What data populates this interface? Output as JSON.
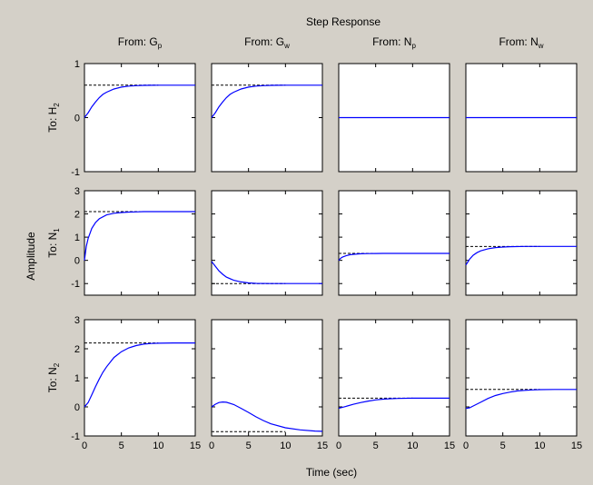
{
  "figure": {
    "title": "Step Response",
    "xlabel": "Time (sec)",
    "ylabel": "Amplitude",
    "background": "#d4d0c8",
    "axes_background": "#ffffff",
    "response_color": "#0000ff",
    "steady_state_color": "#000000"
  },
  "chart_data": {
    "type": "line",
    "title": "Step Response",
    "xlabel": "Time (sec)",
    "ylabel": "Amplitude",
    "xlim": [
      0,
      15
    ],
    "xticks": [
      0,
      5,
      10,
      15
    ],
    "grid": false,
    "columns": [
      {
        "label": "From: G",
        "sub": "p"
      },
      {
        "label": "From: G",
        "sub": "w"
      },
      {
        "label": "From: N",
        "sub": "p"
      },
      {
        "label": "From: N",
        "sub": "w"
      }
    ],
    "rows": [
      {
        "label": "To: H",
        "sub": "2",
        "ylim": [
          -1,
          1
        ],
        "yticks": [
          -1,
          0,
          1
        ]
      },
      {
        "label": "To: N",
        "sub": "1",
        "ylim": [
          -1.5,
          3
        ],
        "yticks": [
          -1,
          0,
          1,
          2,
          3
        ]
      },
      {
        "label": "To: N",
        "sub": "2",
        "ylim": [
          -1,
          3
        ],
        "yticks": [
          -1,
          0,
          1,
          2,
          3
        ]
      }
    ],
    "series": [
      {
        "row": 0,
        "col": 0,
        "steady_state": 0.6,
        "x": [
          0,
          0.5,
          1,
          1.5,
          2,
          2.5,
          3,
          4,
          5,
          6,
          7,
          8,
          9,
          10,
          12,
          15
        ],
        "y": [
          0,
          0.09,
          0.2,
          0.29,
          0.37,
          0.43,
          0.47,
          0.53,
          0.565,
          0.583,
          0.592,
          0.596,
          0.598,
          0.6,
          0.6,
          0.6
        ]
      },
      {
        "row": 0,
        "col": 1,
        "steady_state": 0.6,
        "x": [
          0,
          0.5,
          1,
          1.5,
          2,
          2.5,
          3,
          4,
          5,
          6,
          7,
          8,
          9,
          10,
          12,
          15
        ],
        "y": [
          0,
          0.09,
          0.2,
          0.29,
          0.37,
          0.43,
          0.47,
          0.53,
          0.565,
          0.583,
          0.592,
          0.596,
          0.598,
          0.6,
          0.6,
          0.6
        ]
      },
      {
        "row": 0,
        "col": 2,
        "steady_state": null,
        "x": [
          0,
          15
        ],
        "y": [
          0,
          0
        ]
      },
      {
        "row": 0,
        "col": 3,
        "steady_state": null,
        "x": [
          0,
          15
        ],
        "y": [
          0,
          0
        ]
      },
      {
        "row": 1,
        "col": 0,
        "steady_state": 2.1,
        "x": [
          0,
          0.25,
          0.5,
          1,
          1.5,
          2,
          3,
          4,
          5,
          6,
          7,
          8,
          10,
          15
        ],
        "y": [
          0,
          0.6,
          0.95,
          1.38,
          1.63,
          1.79,
          1.96,
          2.03,
          2.06,
          2.08,
          2.09,
          2.1,
          2.1,
          2.1
        ]
      },
      {
        "row": 1,
        "col": 1,
        "steady_state": -1.0,
        "x": [
          0,
          0.5,
          1,
          1.5,
          2,
          3,
          4,
          5,
          6,
          8,
          10,
          15
        ],
        "y": [
          -0.05,
          -0.25,
          -0.45,
          -0.6,
          -0.72,
          -0.86,
          -0.93,
          -0.97,
          -0.99,
          -1.0,
          -1.0,
          -1.0
        ]
      },
      {
        "row": 1,
        "col": 2,
        "steady_state": 0.3,
        "x": [
          0,
          0.25,
          0.5,
          1,
          1.5,
          2,
          3,
          4,
          5,
          6,
          8,
          15
        ],
        "y": [
          0,
          0.09,
          0.14,
          0.2,
          0.24,
          0.26,
          0.285,
          0.293,
          0.297,
          0.3,
          0.3,
          0.3
        ]
      },
      {
        "row": 1,
        "col": 3,
        "steady_state": 0.6,
        "x": [
          0,
          0.5,
          1,
          1.5,
          2,
          3,
          4,
          5,
          6,
          8,
          10,
          15
        ],
        "y": [
          -0.2,
          0.05,
          0.22,
          0.33,
          0.41,
          0.5,
          0.55,
          0.575,
          0.59,
          0.6,
          0.6,
          0.6
        ]
      },
      {
        "row": 2,
        "col": 0,
        "steady_state": 2.2,
        "x": [
          0,
          0.5,
          1,
          1.5,
          2,
          2.5,
          3,
          4,
          5,
          6,
          7,
          8,
          9,
          10,
          12,
          15
        ],
        "y": [
          0,
          0.15,
          0.42,
          0.7,
          0.96,
          1.19,
          1.38,
          1.7,
          1.9,
          2.03,
          2.11,
          2.16,
          2.18,
          2.19,
          2.2,
          2.2
        ]
      },
      {
        "row": 2,
        "col": 1,
        "steady_state": -0.85,
        "x": [
          0,
          0.5,
          1,
          1.5,
          2,
          3,
          4,
          5,
          6,
          7,
          8,
          10,
          12,
          14,
          15
        ],
        "y": [
          0,
          0.09,
          0.15,
          0.17,
          0.16,
          0.08,
          -0.05,
          -0.19,
          -0.34,
          -0.47,
          -0.58,
          -0.72,
          -0.79,
          -0.83,
          -0.84
        ]
      },
      {
        "row": 2,
        "col": 2,
        "steady_state": 0.3,
        "x": [
          0,
          1,
          2,
          3,
          4,
          5,
          6,
          7,
          8,
          10,
          12,
          15
        ],
        "y": [
          -0.05,
          0.02,
          0.09,
          0.15,
          0.2,
          0.24,
          0.265,
          0.28,
          0.29,
          0.3,
          0.3,
          0.3
        ]
      },
      {
        "row": 2,
        "col": 3,
        "steady_state": 0.6,
        "x": [
          0,
          0.5,
          1,
          2,
          3,
          4,
          5,
          6,
          7,
          8,
          9,
          10,
          12,
          15
        ],
        "y": [
          -0.05,
          -0.03,
          0.03,
          0.16,
          0.29,
          0.39,
          0.46,
          0.51,
          0.55,
          0.57,
          0.585,
          0.595,
          0.6,
          0.6
        ]
      }
    ]
  }
}
